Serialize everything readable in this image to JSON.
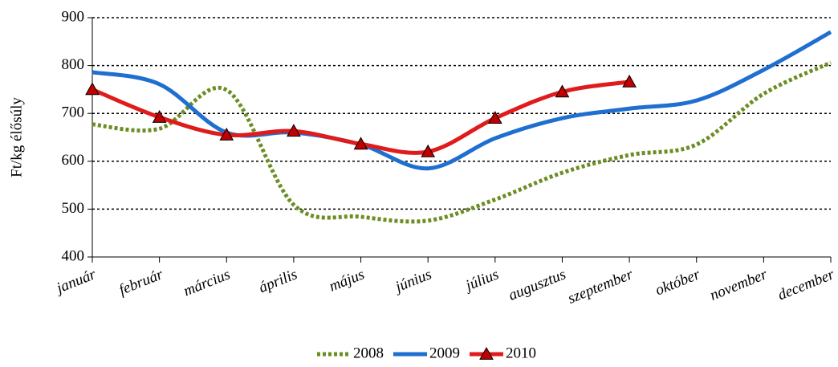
{
  "chart_data": {
    "type": "line",
    "ylabel": "Ft/kg élősúly",
    "categories": [
      "január",
      "február",
      "március",
      "április",
      "május",
      "június",
      "július",
      "augusztus",
      "szeptember",
      "október",
      "november",
      "december"
    ],
    "series": [
      {
        "name": "2008",
        "color": "#6b8e23",
        "style": "dotted",
        "marker": null,
        "values": [
          677,
          668,
          749,
          509,
          484,
          476,
          520,
          576,
          613,
          635,
          741,
          806
        ]
      },
      {
        "name": "2009",
        "color": "#1f6fd0",
        "style": "solid",
        "marker": null,
        "values": [
          786,
          761,
          660,
          660,
          635,
          585,
          648,
          690,
          710,
          727,
          791,
          870
        ]
      },
      {
        "name": "2010",
        "color": "#e01b1b",
        "style": "solid",
        "marker": "triangle",
        "values": [
          750,
          692,
          655,
          663,
          636,
          620,
          690,
          745,
          766,
          null,
          null,
          null
        ]
      }
    ],
    "ylim": [
      400,
      900
    ],
    "yticks": [
      400,
      500,
      600,
      700,
      800,
      900
    ],
    "grid": true,
    "legend": "bottom"
  }
}
